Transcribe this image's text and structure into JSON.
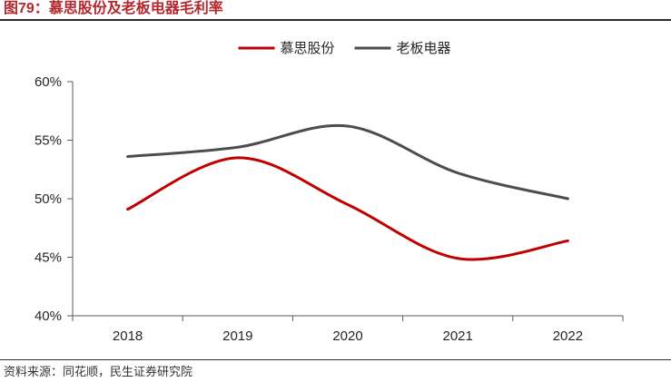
{
  "figure": {
    "title": "图79：慕思股份及老板电器毛利率",
    "source": "资料来源：同花顺，民生证券研究院"
  },
  "chart_data": {
    "type": "line",
    "title": "",
    "xlabel": "",
    "ylabel": "",
    "categories": [
      "2018",
      "2019",
      "2020",
      "2021",
      "2022"
    ],
    "ylim": [
      40,
      60
    ],
    "yticks": [
      40,
      45,
      50,
      55,
      60
    ],
    "ytick_labels": [
      "40%",
      "45%",
      "50%",
      "55%",
      "60%"
    ],
    "grid": false,
    "smooth": true,
    "legend_position": "top-center",
    "series": [
      {
        "name": "慕思股份",
        "color": "#c00000",
        "values": [
          49.1,
          53.5,
          49.5,
          44.9,
          46.4
        ]
      },
      {
        "name": "老板电器",
        "color": "#4d4d4d",
        "values": [
          53.6,
          54.4,
          56.2,
          52.2,
          50.0
        ]
      }
    ]
  }
}
